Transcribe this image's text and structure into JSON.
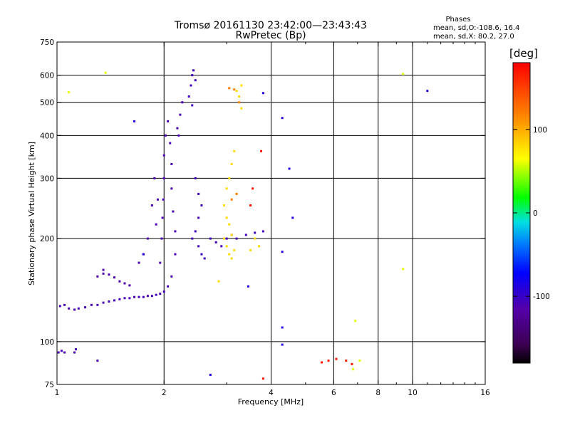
{
  "header": {
    "title_line1": "Tromsø 20161130 23:42:00—23:43:43",
    "title_line2": "RwPretec (Bp)"
  },
  "stats": {
    "heading": "Phases",
    "line1": "mean, sd,O:-108.6, 16.4",
    "line2": "mean, sd,X:  80.2, 27.0"
  },
  "colorbar": {
    "unit": "[deg]",
    "range": [
      -180,
      180
    ],
    "ticks": [
      -100,
      0,
      100
    ],
    "tick_labels": [
      "-100",
      "0",
      "100"
    ]
  },
  "chart_data": {
    "type": "scatter",
    "xlabel": "Frequency [MHz]",
    "ylabel": "Stationary phase Virtual Height [km]",
    "xscale": "log",
    "yscale": "log",
    "xlim": [
      1,
      16
    ],
    "ylim": [
      75,
      750
    ],
    "x_ticks": [
      1,
      2,
      4,
      6,
      8,
      10,
      16
    ],
    "x_tick_labels": [
      "1",
      "2",
      "4",
      "6",
      "8",
      "10",
      "16"
    ],
    "y_ticks": [
      75,
      100,
      200,
      300,
      400,
      500,
      600,
      750
    ],
    "y_tick_labels": [
      "75",
      "100",
      "200",
      "300",
      "400",
      "500",
      "600",
      "750"
    ],
    "x_grid": [
      2,
      4,
      6,
      8,
      10
    ],
    "y_grid": [
      100,
      200,
      300,
      400,
      500,
      600
    ],
    "phase_colormap": "rainbow (-180 black/violet to +180 red)",
    "clusters": [
      {
        "name": "O-trace low",
        "phase": -108,
        "points": [
          [
            1.02,
            127
          ],
          [
            1.05,
            128
          ],
          [
            1.08,
            125
          ],
          [
            1.12,
            124
          ],
          [
            1.15,
            125
          ],
          [
            1.2,
            126
          ],
          [
            1.25,
            128
          ],
          [
            1.3,
            128
          ],
          [
            1.35,
            130
          ],
          [
            1.4,
            131
          ],
          [
            1.45,
            132
          ],
          [
            1.5,
            133
          ],
          [
            1.55,
            134
          ],
          [
            1.6,
            134
          ],
          [
            1.65,
            135
          ],
          [
            1.7,
            135
          ],
          [
            1.75,
            135
          ],
          [
            1.8,
            136
          ],
          [
            1.85,
            136
          ],
          [
            1.9,
            137
          ],
          [
            1.95,
            138
          ],
          [
            2.0,
            140
          ],
          [
            2.05,
            145
          ],
          [
            2.1,
            155
          ]
        ]
      },
      {
        "name": "O-trace vertical 2MHz",
        "phase": -110,
        "points": [
          [
            1.95,
            170
          ],
          [
            1.97,
            200
          ],
          [
            1.98,
            230
          ],
          [
            1.99,
            260
          ],
          [
            2.0,
            300
          ],
          [
            2.0,
            350
          ],
          [
            2.02,
            400
          ],
          [
            2.05,
            440
          ],
          [
            2.08,
            380
          ],
          [
            2.1,
            330
          ],
          [
            2.1,
            280
          ],
          [
            2.12,
            240
          ],
          [
            2.15,
            210
          ],
          [
            2.15,
            180
          ],
          [
            1.9,
            220
          ],
          [
            1.92,
            260
          ],
          [
            1.88,
            300
          ],
          [
            1.85,
            250
          ],
          [
            1.8,
            200
          ],
          [
            1.75,
            180
          ],
          [
            1.7,
            170
          ],
          [
            2.18,
            420
          ],
          [
            2.2,
            400
          ],
          [
            2.22,
            460
          ],
          [
            2.25,
            500
          ]
        ]
      },
      {
        "name": "O-trace 2.4MHz",
        "phase": -105,
        "points": [
          [
            2.35,
            520
          ],
          [
            2.38,
            560
          ],
          [
            2.4,
            600
          ],
          [
            2.42,
            620
          ],
          [
            2.45,
            580
          ],
          [
            2.4,
            490
          ],
          [
            2.45,
            300
          ],
          [
            2.5,
            270
          ],
          [
            2.55,
            250
          ],
          [
            2.5,
            230
          ],
          [
            2.45,
            210
          ],
          [
            2.4,
            200
          ],
          [
            2.5,
            190
          ],
          [
            2.55,
            180
          ],
          [
            2.6,
            175
          ],
          [
            2.7,
            200
          ],
          [
            2.8,
            195
          ],
          [
            2.9,
            190
          ],
          [
            3.0,
            200
          ],
          [
            3.1,
            205
          ],
          [
            3.2,
            200
          ],
          [
            3.4,
            205
          ],
          [
            3.6,
            208
          ],
          [
            3.8,
            210
          ]
        ]
      },
      {
        "name": "O-trace 1.3MHz bump",
        "phase": -112,
        "points": [
          [
            1.3,
            155
          ],
          [
            1.35,
            158
          ],
          [
            1.4,
            157
          ],
          [
            1.45,
            154
          ],
          [
            1.5,
            150
          ],
          [
            1.55,
            148
          ],
          [
            1.35,
            162
          ],
          [
            1.6,
            146
          ]
        ]
      },
      {
        "name": "low echoes 1MHz",
        "phase": -110,
        "points": [
          [
            1.01,
            93
          ],
          [
            1.03,
            94
          ],
          [
            1.05,
            93
          ],
          [
            1.12,
            93
          ],
          [
            1.13,
            95
          ],
          [
            1.3,
            88
          ]
        ]
      },
      {
        "name": "X-trace 3MHz",
        "phase": 80,
        "points": [
          [
            2.95,
            250
          ],
          [
            3.0,
            280
          ],
          [
            3.05,
            300
          ],
          [
            3.1,
            330
          ],
          [
            3.15,
            360
          ],
          [
            3.0,
            230
          ],
          [
            3.05,
            220
          ],
          [
            3.1,
            205
          ],
          [
            3.0,
            190
          ],
          [
            3.05,
            180
          ],
          [
            3.1,
            175
          ],
          [
            3.15,
            185
          ],
          [
            2.95,
            200
          ],
          [
            3.2,
            540
          ],
          [
            3.25,
            520
          ],
          [
            3.3,
            560
          ],
          [
            3.3,
            480
          ],
          [
            3.5,
            185
          ],
          [
            3.6,
            200
          ],
          [
            3.7,
            190
          ],
          [
            2.85,
            150
          ]
        ]
      },
      {
        "name": "X-trace high phase",
        "phase": 120,
        "points": [
          [
            3.05,
            550
          ],
          [
            3.15,
            545
          ],
          [
            3.25,
            500
          ],
          [
            3.2,
            270
          ],
          [
            3.1,
            260
          ]
        ]
      },
      {
        "name": "scattered red",
        "phase": 170,
        "points": [
          [
            3.5,
            250
          ],
          [
            3.55,
            280
          ],
          [
            3.75,
            360
          ],
          [
            5.55,
            87
          ],
          [
            5.8,
            88
          ],
          [
            6.1,
            89
          ],
          [
            6.5,
            88
          ],
          [
            6.75,
            86
          ],
          [
            3.8,
            78
          ]
        ]
      },
      {
        "name": "scattered misc",
        "phase": 60,
        "points": [
          [
            1.08,
            535
          ],
          [
            1.37,
            610
          ],
          [
            9.4,
            605
          ],
          [
            7.1,
            88
          ],
          [
            6.9,
            115
          ],
          [
            9.4,
            163
          ],
          [
            6.8,
            83
          ]
        ]
      },
      {
        "name": "scattered blue",
        "phase": -90,
        "points": [
          [
            4.3,
            450
          ],
          [
            4.5,
            320
          ],
          [
            4.6,
            230
          ],
          [
            4.3,
            183
          ],
          [
            4.3,
            98
          ],
          [
            4.3,
            110
          ],
          [
            3.8,
            532
          ],
          [
            11.0,
            540
          ],
          [
            1.65,
            440
          ],
          [
            2.7,
            80
          ],
          [
            1.75,
            180
          ],
          [
            3.45,
            145
          ]
        ]
      }
    ]
  }
}
